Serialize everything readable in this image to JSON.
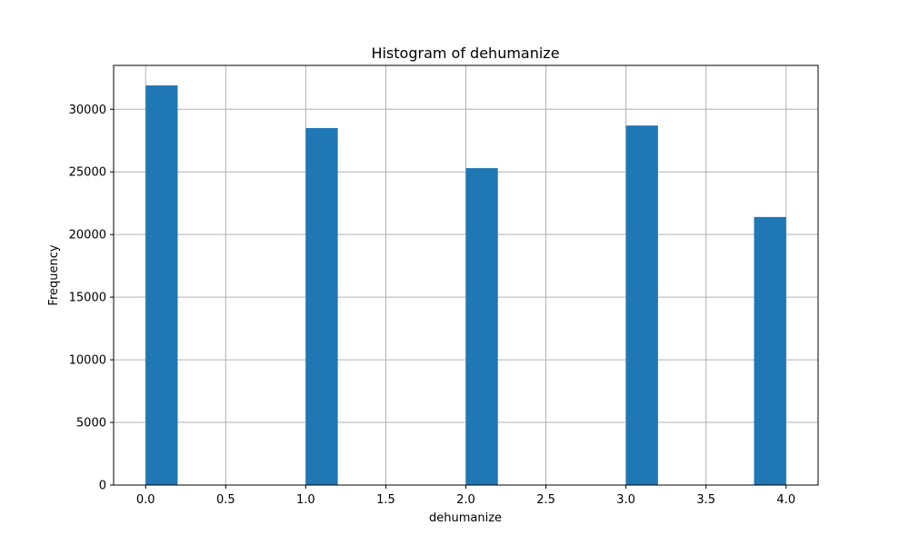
{
  "chart_data": {
    "type": "bar",
    "title": "Histogram of dehumanize",
    "xlabel": "dehumanize",
    "ylabel": "Frequency",
    "bins": [
      {
        "x_start": 0.0,
        "x_end": 0.2,
        "value": 31900
      },
      {
        "x_start": 1.0,
        "x_end": 1.2,
        "value": 28500
      },
      {
        "x_start": 2.0,
        "x_end": 2.2,
        "value": 25300
      },
      {
        "x_start": 3.0,
        "x_end": 3.2,
        "value": 28700
      },
      {
        "x_start": 3.8,
        "x_end": 4.0,
        "value": 21400
      }
    ],
    "xlim": [
      -0.2,
      4.2
    ],
    "ylim": [
      0,
      33500
    ],
    "xticks": [
      0.0,
      0.5,
      1.0,
      1.5,
      2.0,
      2.5,
      3.0,
      3.5,
      4.0
    ],
    "xtick_labels": [
      "0.0",
      "0.5",
      "1.0",
      "1.5",
      "2.0",
      "2.5",
      "3.0",
      "3.5",
      "4.0"
    ],
    "yticks": [
      0,
      5000,
      10000,
      15000,
      20000,
      25000,
      30000
    ],
    "ytick_labels": [
      "0",
      "5000",
      "10000",
      "15000",
      "20000",
      "25000",
      "30000"
    ],
    "grid": true,
    "bar_color": "#1f77b4",
    "grid_color": "#b0b0b0"
  }
}
